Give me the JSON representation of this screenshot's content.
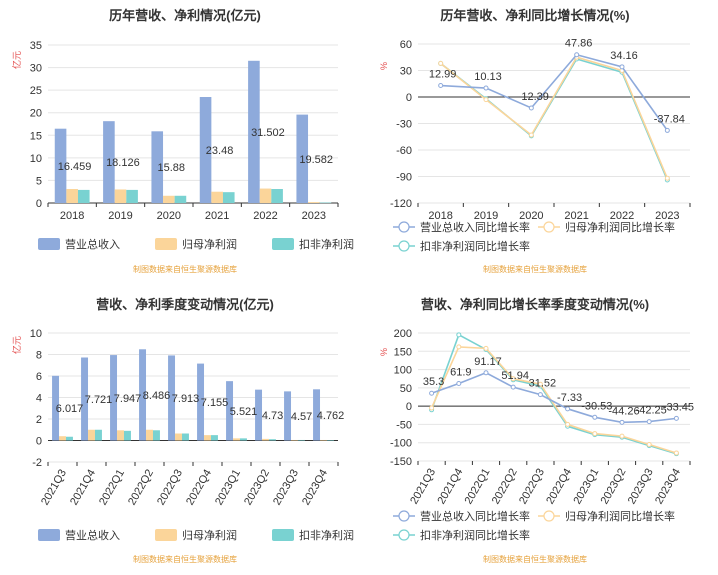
{
  "colors": {
    "revenue": "#8eaadb",
    "net_profit": "#fbd59a",
    "deducted_profit": "#79d2d1",
    "axis": "#333333",
    "grid": "#e5e5e5",
    "unit": "#e34b4b",
    "source": "#e6a23c"
  },
  "chart_data": [
    {
      "type": "bar",
      "title": "历年营收、净利情况(亿元)",
      "unit_label": "亿元",
      "categories": [
        "2018",
        "2019",
        "2020",
        "2021",
        "2022",
        "2023"
      ],
      "ylim": [
        0,
        35
      ],
      "yticks": [
        0,
        5,
        10,
        15,
        20,
        25,
        30,
        35
      ],
      "series": [
        {
          "name": "营业总收入",
          "values": [
            16.459,
            18.126,
            15.88,
            23.48,
            31.502,
            19.582
          ],
          "labels": [
            "16.459",
            "18.126",
            "15.88",
            "23.48",
            "31.502",
            "19.582"
          ]
        },
        {
          "name": "归母净利润",
          "values": [
            3.1,
            3.0,
            1.6,
            2.5,
            3.2,
            0.2
          ]
        },
        {
          "name": "扣非净利润",
          "values": [
            2.9,
            2.9,
            1.6,
            2.4,
            3.1,
            0.1
          ]
        }
      ],
      "grid": true,
      "legend": "bottom",
      "source": "制图数据来自恒生聚源数据库"
    },
    {
      "type": "line",
      "title": "历年营收、净利同比增长情况(%)",
      "unit_label": "%",
      "categories": [
        "2018",
        "2019",
        "2020",
        "2021",
        "2022",
        "2023"
      ],
      "ylim": [
        -120,
        60
      ],
      "yticks": [
        60,
        30,
        0,
        -30,
        -60,
        -90,
        -120
      ],
      "series": [
        {
          "name": "营业总收入同比增长率",
          "values": [
            12.99,
            10.13,
            -12.39,
            47.86,
            34.16,
            -37.84
          ],
          "labels": [
            "12.99",
            "10.13",
            "-12.39",
            "47.86",
            "34.16",
            "-37.84"
          ]
        },
        {
          "name": "归母净利润同比增长率",
          "values": [
            38,
            -3,
            -43,
            45,
            30,
            -92
          ]
        },
        {
          "name": "扣非净利润同比增长率",
          "values": [
            38,
            -2,
            -44,
            43,
            28,
            -94
          ]
        }
      ],
      "grid": true,
      "legend": "bottom",
      "source": "制图数据来自恒生聚源数据库"
    },
    {
      "type": "bar",
      "title": "营收、净利季度变动情况(亿元)",
      "unit_label": "亿元",
      "categories": [
        "2021Q3",
        "2021Q4",
        "2022Q1",
        "2022Q2",
        "2022Q3",
        "2022Q4",
        "2023Q1",
        "2023Q2",
        "2023Q3",
        "2023Q4"
      ],
      "ylim": [
        -2,
        10
      ],
      "yticks": [
        -2,
        0,
        2,
        4,
        6,
        8,
        10
      ],
      "series": [
        {
          "name": "营业总收入",
          "values": [
            6.017,
            7.721,
            7.947,
            8.486,
            7.913,
            7.155,
            5.521,
            4.73,
            4.57,
            4.762
          ],
          "labels": [
            "6.017",
            "7.721",
            "7.947",
            "8.486",
            "7.913",
            "7.155",
            "5.521",
            "4.73",
            "4.57",
            "4.762"
          ]
        },
        {
          "name": "归母净利润",
          "values": [
            0.4,
            1.0,
            0.95,
            1.0,
            0.65,
            0.5,
            0.2,
            0.15,
            0.05,
            0.05
          ]
        },
        {
          "name": "扣非净利润",
          "values": [
            0.35,
            1.0,
            0.9,
            0.95,
            0.65,
            0.5,
            0.2,
            0.12,
            0.05,
            0.0
          ]
        }
      ],
      "grid": true,
      "legend": "bottom",
      "source": "制图数据来自恒生聚源数据库"
    },
    {
      "type": "line",
      "title": "营收、净利同比增长率季度变动情况(%)",
      "unit_label": "%",
      "categories": [
        "2021Q3",
        "2021Q4",
        "2022Q1",
        "2022Q2",
        "2022Q3",
        "2022Q4",
        "2023Q1",
        "2023Q2",
        "2023Q3",
        "2023Q4"
      ],
      "ylim": [
        -150,
        200
      ],
      "yticks": [
        200,
        150,
        100,
        50,
        0,
        -50,
        -100,
        -150
      ],
      "series": [
        {
          "name": "营业总收入同比增长率",
          "values": [
            35.3,
            61.9,
            91.17,
            51.94,
            31.52,
            -7.33,
            -30.53,
            -44.26,
            -42.25,
            -33.45
          ],
          "labels": [
            "35.3",
            "61.9",
            "91.17",
            "51.94",
            "31.52",
            "-7.33",
            "-30.53",
            "-44.26",
            "-42.25",
            "-33.45"
          ]
        },
        {
          "name": "归母净利润同比增长率",
          "values": [
            -5,
            162,
            158,
            75,
            60,
            -50,
            -75,
            -82,
            -105,
            -128
          ]
        },
        {
          "name": "扣非净利润同比增长率",
          "values": [
            -10,
            195,
            155,
            72,
            55,
            -55,
            -78,
            -85,
            -108,
            -130
          ]
        }
      ],
      "grid": true,
      "legend": "bottom",
      "source": "制图数据来自恒生聚源数据库"
    }
  ]
}
